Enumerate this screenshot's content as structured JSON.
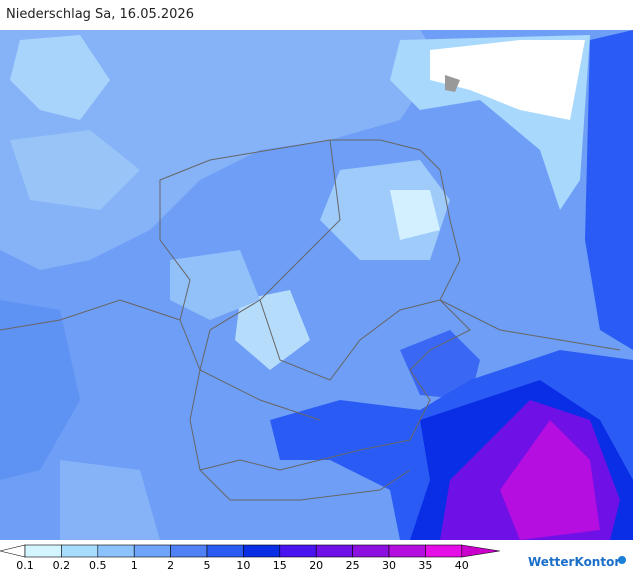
{
  "header": {
    "title": "Niederschlag Sa, 16.05.2026"
  },
  "legend": {
    "labels": [
      "0.1",
      "0.2",
      "0.5",
      "1",
      "2",
      "5",
      "10",
      "15",
      "20",
      "25",
      "30",
      "35",
      "40"
    ],
    "colors": [
      "#ffffff",
      "#d2f5ff",
      "#a8dcff",
      "#8cc3ff",
      "#6ea5fa",
      "#5082f5",
      "#2a5cf5",
      "#0a2ee6",
      "#4a14f0",
      "#6e10e6",
      "#8c10e0",
      "#b40ee0",
      "#e60ee6",
      "#cc00cc"
    ]
  },
  "brand": "WetterKontor"
}
